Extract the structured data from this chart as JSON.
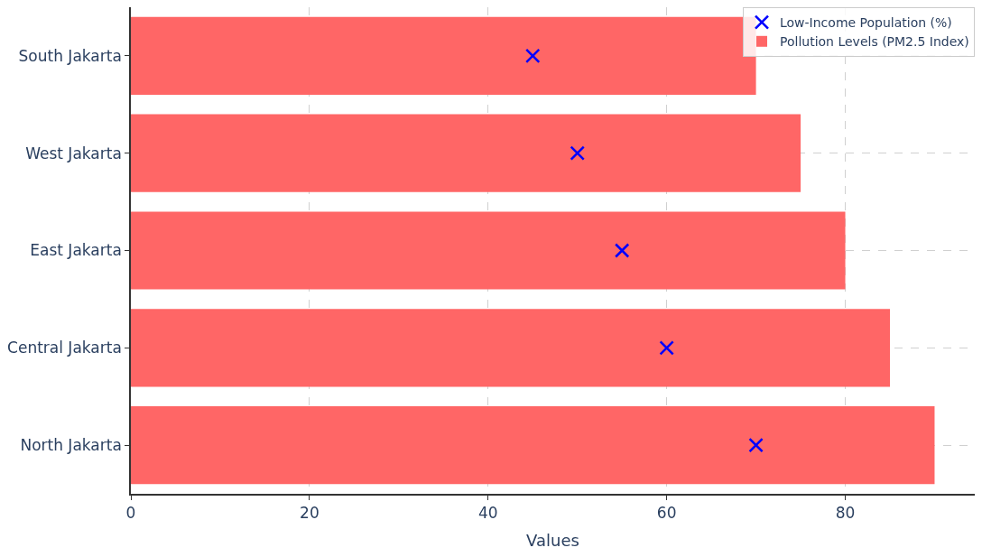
{
  "chart_data": {
    "type": "bar",
    "orientation": "horizontal",
    "xlabel": "Values",
    "categories": [
      "South Jakarta",
      "West Jakarta",
      "East Jakarta",
      "Central Jakarta",
      "North Jakarta"
    ],
    "series": [
      {
        "name": "Low-Income Population (%)",
        "type": "scatter",
        "marker": "cross",
        "color": "#0000ff",
        "values": [
          45,
          50,
          55,
          60,
          70
        ]
      },
      {
        "name": "Pollution Levels (PM2.5 Index)",
        "color": "#ff6666",
        "values": [
          70,
          75,
          80,
          85,
          90
        ]
      }
    ],
    "xlim": [
      0,
      94.5
    ],
    "xticks": [
      0,
      20,
      40,
      60,
      80
    ],
    "grid": true,
    "legend": "top right"
  }
}
